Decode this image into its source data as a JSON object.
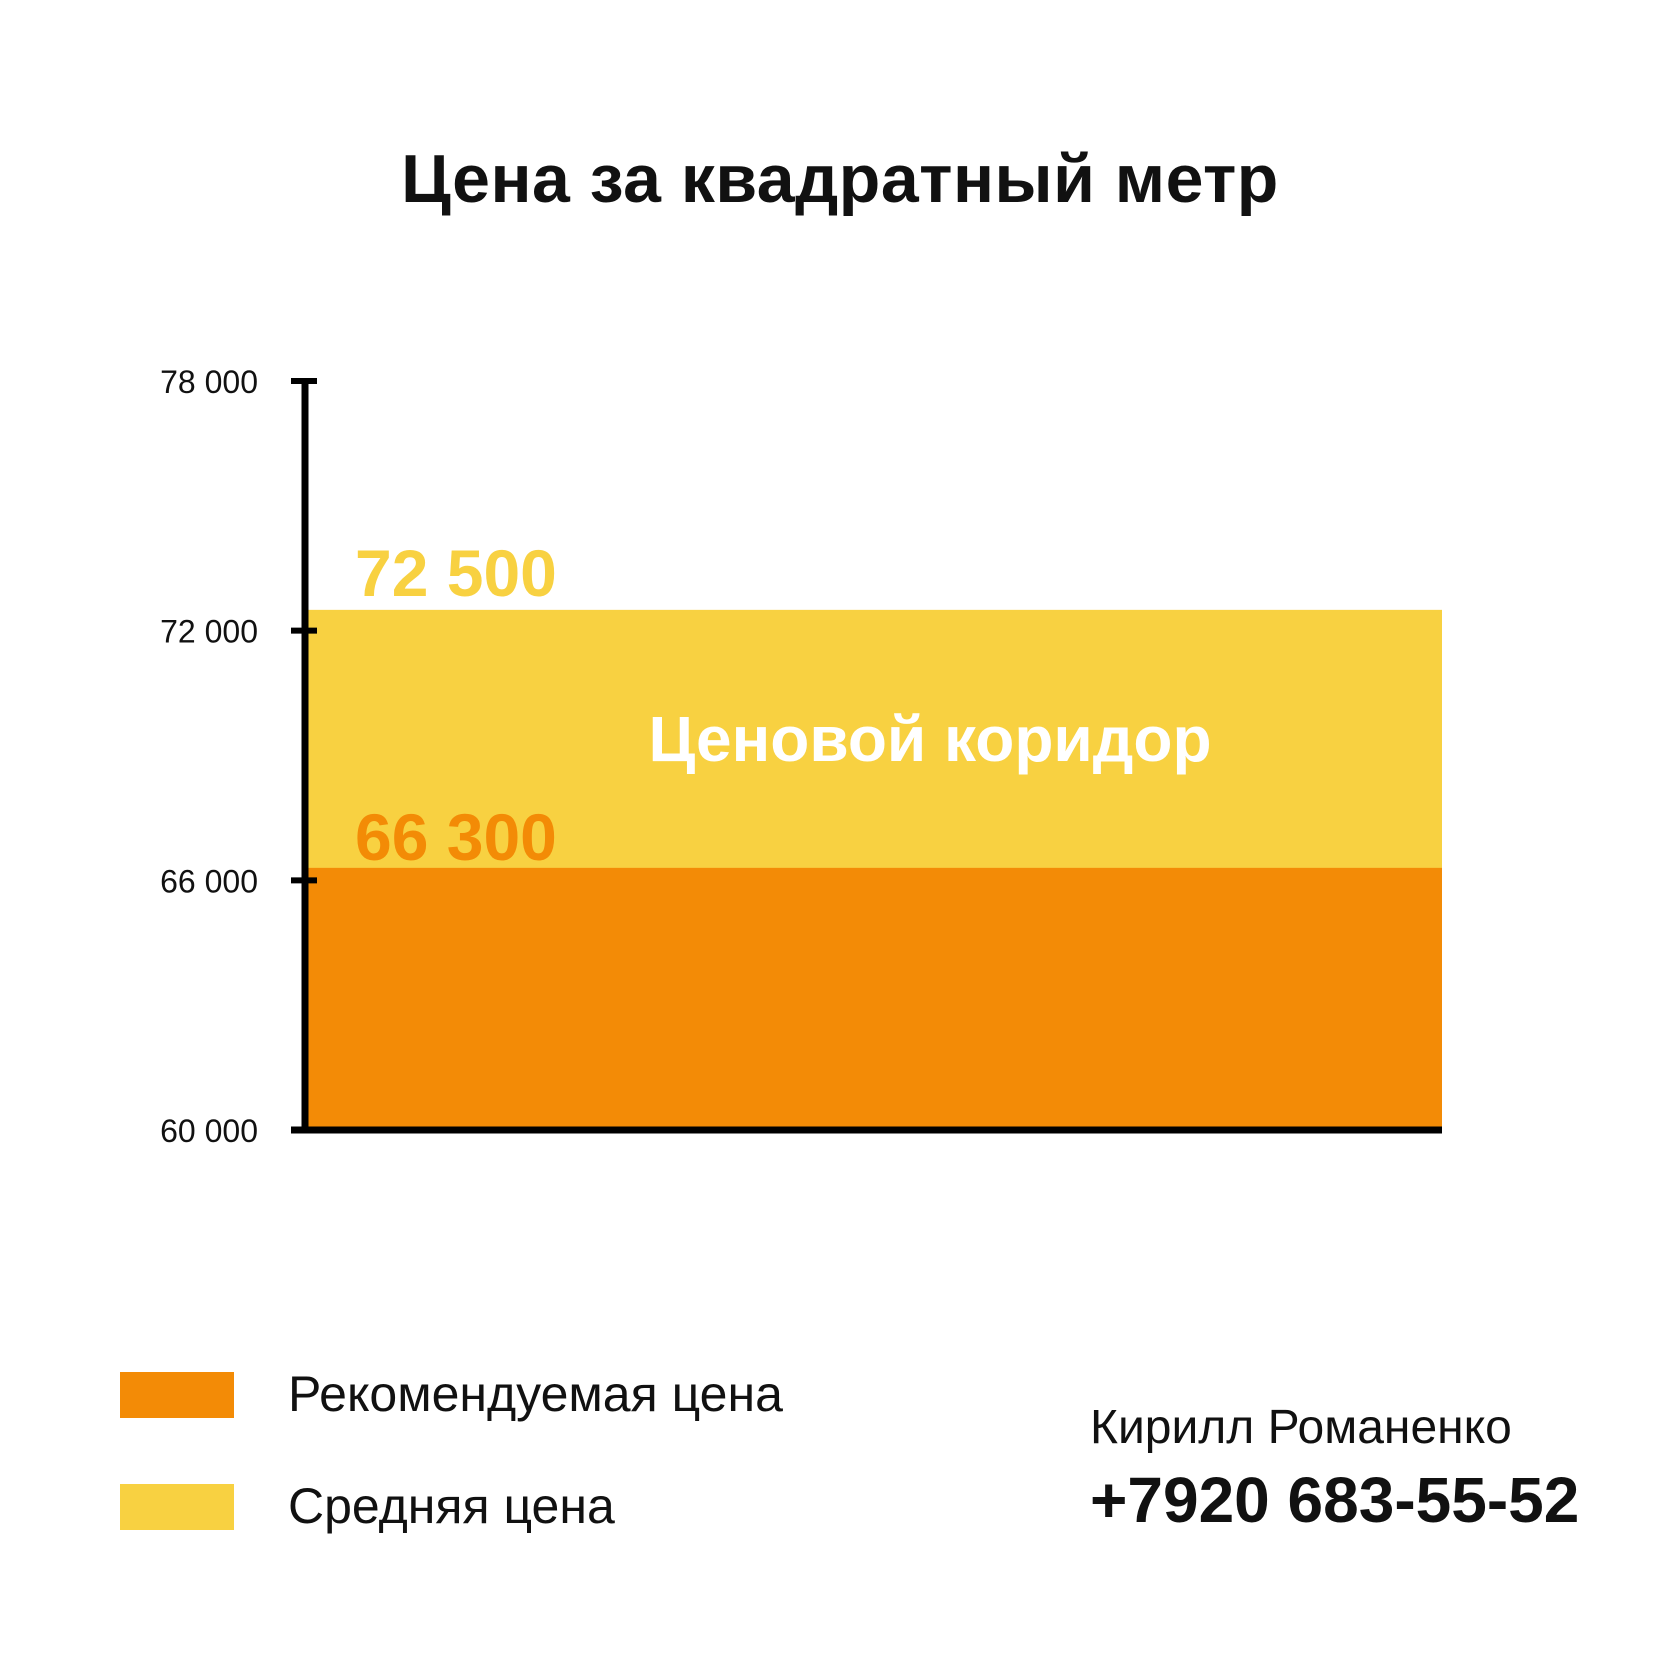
{
  "chart_data": {
    "type": "area",
    "title": "Цена за квадратный метр",
    "xlabel": "",
    "ylabel": "",
    "ylim": [
      60000,
      78000
    ],
    "y_ticks": [
      60000,
      66000,
      72000,
      78000
    ],
    "y_tick_labels": [
      "60 000",
      "66 000",
      "72 000",
      "78 000"
    ],
    "grid": false,
    "series": [
      {
        "name": "Рекомендуемая цена",
        "value": 66300,
        "value_label": "66 300",
        "color": "#F38B06"
      },
      {
        "name": "Средняя цена",
        "value": 72500,
        "value_label": "72 500",
        "color": "#F8D141"
      }
    ],
    "annotations": [
      {
        "text": "Ценовой коридор",
        "from": 66300,
        "to": 72500,
        "color": "#FFFFFF"
      }
    ],
    "legend_position": "bottom-left"
  },
  "contact": {
    "name": "Кирилл Романенко",
    "phone": "+7920 683-55-52"
  }
}
